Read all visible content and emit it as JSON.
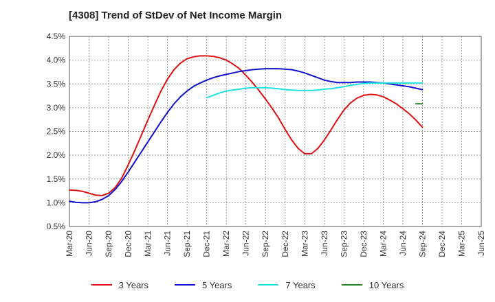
{
  "chart_data": {
    "type": "line",
    "title": "[4308]  Trend of StDev of Net Income Margin",
    "xlabel": "",
    "ylabel": "",
    "x_tick_labels": [
      "Mar-20",
      "Jun-20",
      "Sep-20",
      "Dec-20",
      "Mar-21",
      "Jun-21",
      "Sep-21",
      "Dec-21",
      "Mar-22",
      "Jun-22",
      "Sep-22",
      "Dec-22",
      "Mar-23",
      "Jun-23",
      "Sep-23",
      "Dec-23",
      "Mar-24",
      "Jun-24",
      "Sep-24",
      "Dec-24",
      "Mar-25",
      "Jun-25"
    ],
    "y_tick_labels": [
      "0.5%",
      "1.0%",
      "1.5%",
      "2.0%",
      "2.5%",
      "3.0%",
      "3.5%",
      "4.0%",
      "4.5%"
    ],
    "ylim": [
      0.5,
      4.5
    ],
    "y_unit": "%",
    "grid": true,
    "legend_position": "bottom",
    "series": [
      {
        "name": "3 Years",
        "color": "#dd1111",
        "start_index": 0,
        "values": [
          1.27,
          1.26,
          1.24,
          1.2,
          1.16,
          1.15,
          1.2,
          1.32,
          1.52,
          1.8,
          2.1,
          2.42,
          2.74,
          3.05,
          3.35,
          3.6,
          3.8,
          3.94,
          4.03,
          4.07,
          4.09,
          4.09,
          4.08,
          4.05,
          4.0,
          3.92,
          3.82,
          3.68,
          3.53,
          3.36,
          3.18,
          2.99,
          2.78,
          2.54,
          2.32,
          2.14,
          2.03,
          2.03,
          2.14,
          2.32,
          2.53,
          2.75,
          2.95,
          3.1,
          3.2,
          3.26,
          3.28,
          3.27,
          3.23,
          3.16,
          3.08,
          2.98,
          2.87,
          2.74,
          2.59
        ]
      },
      {
        "name": "5 Years",
        "color": "#1111cc",
        "start_index": 0,
        "values": [
          1.03,
          1.01,
          1.0,
          1.0,
          1.02,
          1.07,
          1.15,
          1.28,
          1.45,
          1.65,
          1.86,
          2.07,
          2.28,
          2.49,
          2.7,
          2.9,
          3.08,
          3.23,
          3.35,
          3.45,
          3.52,
          3.58,
          3.63,
          3.67,
          3.7,
          3.73,
          3.76,
          3.78,
          3.8,
          3.81,
          3.82,
          3.82,
          3.82,
          3.81,
          3.8,
          3.77,
          3.73,
          3.68,
          3.63,
          3.58,
          3.55,
          3.53,
          3.53,
          3.53,
          3.54,
          3.54,
          3.54,
          3.53,
          3.52,
          3.5,
          3.48,
          3.46,
          3.44,
          3.41,
          3.38
        ]
      },
      {
        "name": "7 Years",
        "color": "#22e0e0",
        "start_index": 21,
        "values": [
          3.21,
          3.26,
          3.31,
          3.35,
          3.37,
          3.39,
          3.41,
          3.42,
          3.42,
          3.42,
          3.41,
          3.4,
          3.38,
          3.37,
          3.36,
          3.36,
          3.36,
          3.37,
          3.39,
          3.4,
          3.42,
          3.44,
          3.47,
          3.49,
          3.51,
          3.52,
          3.52,
          3.52,
          3.52,
          3.52,
          3.52,
          3.52,
          3.52,
          3.52
        ]
      },
      {
        "name": "10 Years",
        "color": "#228822",
        "start_index": 53,
        "values": [
          3.08,
          3.08
        ]
      }
    ]
  }
}
